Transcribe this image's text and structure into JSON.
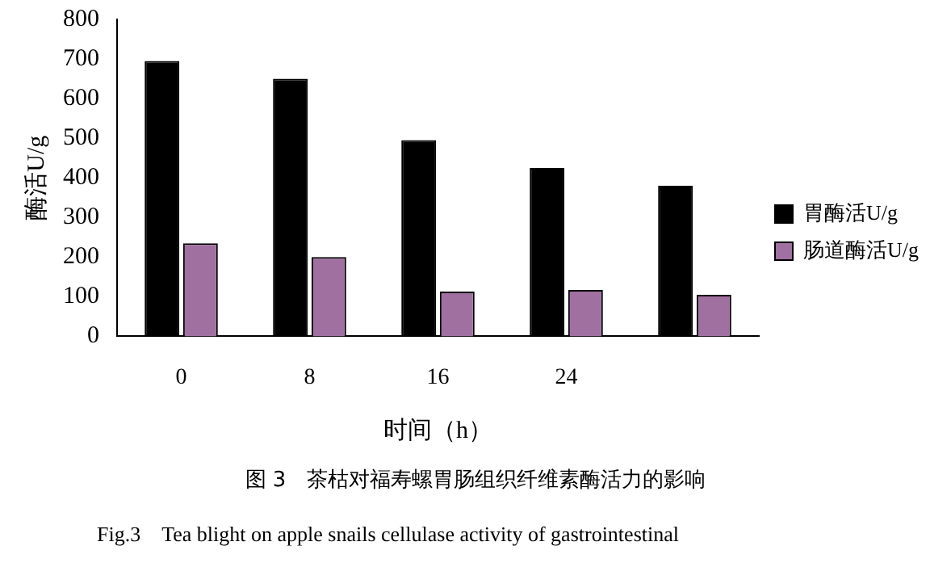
{
  "chart_data": {
    "type": "bar",
    "title": "图 3　茶枯对福寿螺胃肠组织纤维素酶活力的影响",
    "subtitle": "Fig.3　Tea blight on apple snails cellulase activity of gastrointestinal",
    "xlabel": "时间（h）",
    "ylabel": "酶活U/g",
    "categories": [
      "0",
      "8",
      "16",
      "24",
      null
    ],
    "series": [
      {
        "name": "胃酶活U/g",
        "color": "#000000",
        "values": [
          695,
          650,
          495,
          425,
          380
        ]
      },
      {
        "name": "肠道酶活U/g",
        "color": "#a070a0",
        "values": [
          235,
          200,
          113,
          117,
          105
        ]
      }
    ],
    "ylim": [
      0,
      800
    ],
    "yticks": [
      0,
      100,
      200,
      300,
      400,
      500,
      600,
      700,
      800
    ],
    "grid": false,
    "legend": "right"
  }
}
